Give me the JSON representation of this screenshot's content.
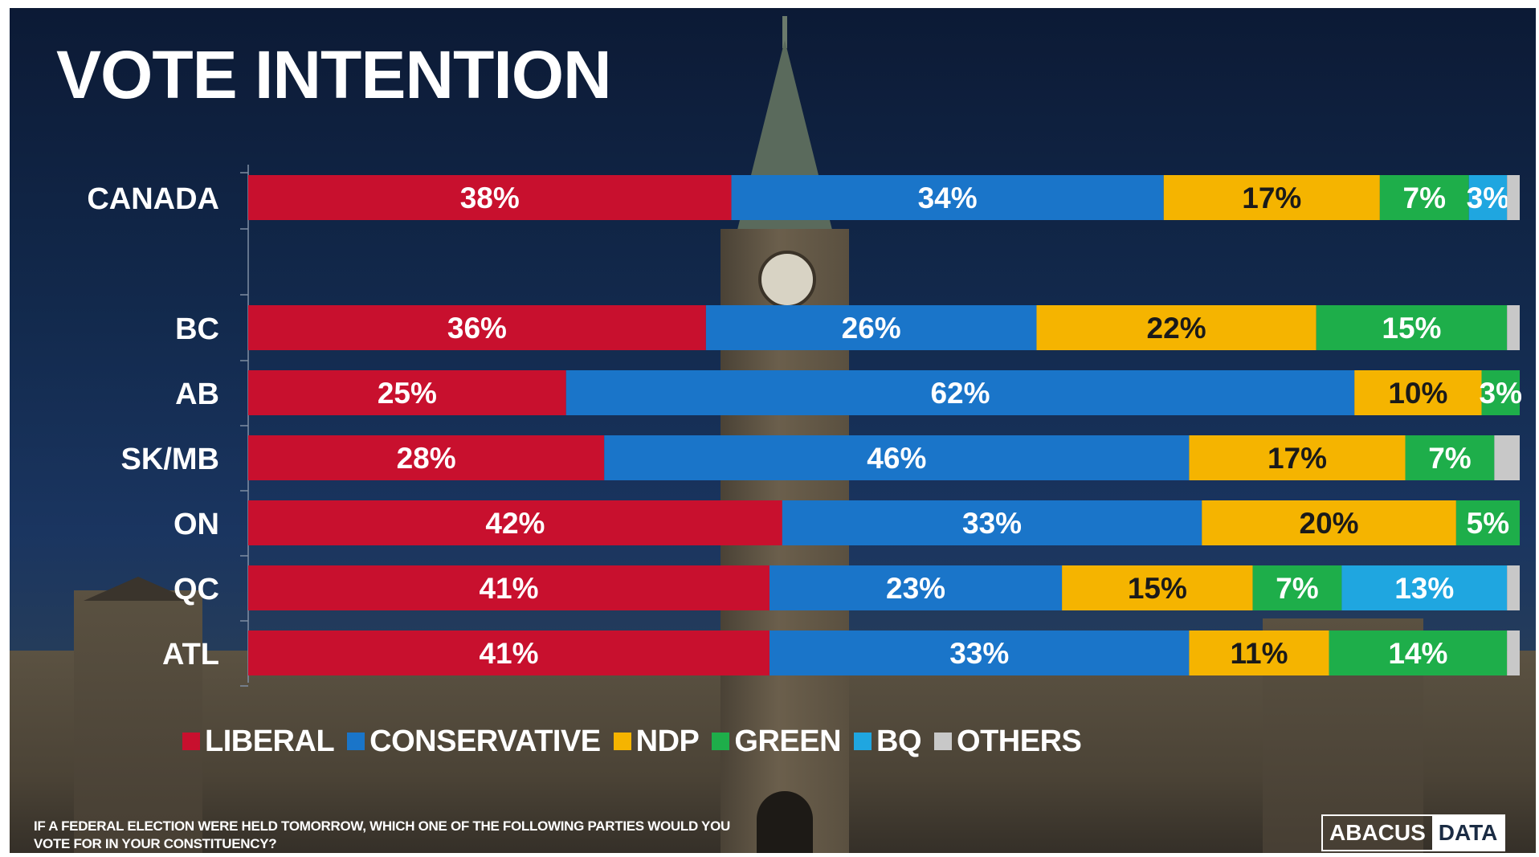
{
  "title": "VOTE INTENTION",
  "colors": {
    "liberal": "#c8102e",
    "conservative": "#1a75c9",
    "ndp": "#f5b400",
    "green": "#1eae4a",
    "bq": "#1fa6e0",
    "others": "#c8c8c8"
  },
  "legend": [
    {
      "label": "LIBERAL",
      "color": "#c8102e"
    },
    {
      "label": "CONSERVATIVE",
      "color": "#1a75c9"
    },
    {
      "label": "NDP",
      "color": "#f5b400"
    },
    {
      "label": "GREEN",
      "color": "#1eae4a"
    },
    {
      "label": "BQ",
      "color": "#1fa6e0"
    },
    {
      "label": "OTHERS",
      "color": "#c8c8c8"
    }
  ],
  "question": "IF A FEDERAL ELECTION WERE HELD TOMORROW, WHICH ONE OF THE FOLLOWING PARTIES WOULD YOU VOTE FOR IN YOUR CONSTITUENCY?",
  "logo": {
    "left": "ABACUS",
    "right": "DATA"
  },
  "chart_data": {
    "type": "bar",
    "orientation": "horizontal",
    "stacked": true,
    "title": "VOTE INTENTION",
    "categories": [
      "CANADA",
      "BC",
      "AB",
      "SK/MB",
      "ON",
      "QC",
      "ATL"
    ],
    "series": [
      {
        "name": "LIBERAL",
        "color": "#c8102e",
        "values": [
          38,
          36,
          25,
          28,
          42,
          41,
          41
        ]
      },
      {
        "name": "CONSERVATIVE",
        "color": "#1a75c9",
        "values": [
          34,
          26,
          62,
          46,
          33,
          23,
          33
        ]
      },
      {
        "name": "NDP",
        "color": "#f5b400",
        "values": [
          17,
          22,
          10,
          17,
          20,
          15,
          11
        ]
      },
      {
        "name": "GREEN",
        "color": "#1eae4a",
        "values": [
          7,
          15,
          3,
          7,
          5,
          7,
          14
        ]
      },
      {
        "name": "BQ",
        "color": "#1fa6e0",
        "values": [
          3,
          0,
          0,
          0,
          0,
          13,
          0
        ]
      },
      {
        "name": "OTHERS",
        "color": "#c8c8c8",
        "values": [
          1,
          1,
          0,
          2,
          0,
          1,
          1
        ]
      }
    ],
    "data_labels": [
      [
        "38%",
        "34%",
        "17%",
        "7%",
        "3%",
        ""
      ],
      [
        "36%",
        "26%",
        "22%",
        "15%",
        "",
        ""
      ],
      [
        "25%",
        "62%",
        "10%",
        "3%",
        "",
        ""
      ],
      [
        "28%",
        "46%",
        "17%",
        "7%",
        "",
        ""
      ],
      [
        "42%",
        "33%",
        "20%",
        "5%",
        "",
        ""
      ],
      [
        "41%",
        "23%",
        "15%",
        "7%",
        "13%",
        ""
      ],
      [
        "41%",
        "33%",
        "11%",
        "14%",
        "",
        ""
      ]
    ],
    "xlim": [
      0,
      100
    ],
    "unit": "%",
    "legend_position": "bottom",
    "grid": false
  }
}
